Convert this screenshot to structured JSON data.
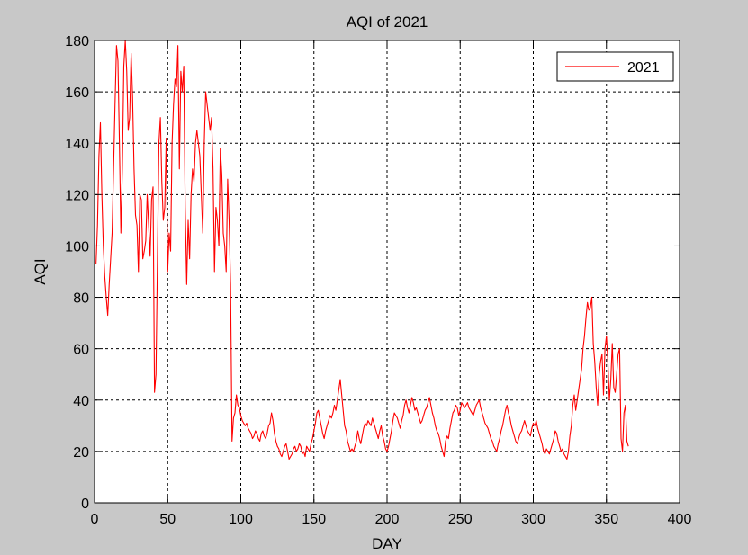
{
  "chart_data": {
    "type": "line",
    "title": "AQI of 2021",
    "xlabel": "DAY",
    "ylabel": "AQI",
    "xlim": [
      0,
      400
    ],
    "ylim": [
      0,
      180
    ],
    "xticks": [
      0,
      50,
      100,
      150,
      200,
      250,
      300,
      350,
      400
    ],
    "yticks": [
      0,
      20,
      40,
      60,
      80,
      100,
      120,
      140,
      160,
      180
    ],
    "grid": true,
    "legend_position": "top-right",
    "series": [
      {
        "name": "2021",
        "color": "#ff0000",
        "x": [
          1,
          2,
          3,
          4,
          5,
          6,
          7,
          8,
          9,
          10,
          11,
          12,
          13,
          14,
          15,
          16,
          17,
          18,
          19,
          20,
          21,
          22,
          23,
          24,
          25,
          26,
          27,
          28,
          29,
          30,
          31,
          32,
          33,
          34,
          35,
          36,
          37,
          38,
          39,
          40,
          41,
          42,
          43,
          44,
          45,
          46,
          47,
          48,
          49,
          50,
          51,
          52,
          53,
          54,
          55,
          56,
          57,
          58,
          59,
          60,
          61,
          62,
          63,
          64,
          65,
          66,
          67,
          68,
          69,
          70,
          71,
          72,
          73,
          74,
          75,
          76,
          77,
          78,
          79,
          80,
          81,
          82,
          83,
          84,
          85,
          86,
          87,
          88,
          89,
          90,
          91,
          92,
          93,
          94,
          95,
          96,
          97,
          98,
          99,
          100,
          101,
          102,
          103,
          104,
          105,
          106,
          107,
          108,
          109,
          110,
          111,
          112,
          113,
          114,
          115,
          116,
          117,
          118,
          119,
          120,
          121,
          122,
          123,
          124,
          125,
          126,
          127,
          128,
          129,
          130,
          131,
          132,
          133,
          134,
          135,
          136,
          137,
          138,
          139,
          140,
          141,
          142,
          143,
          144,
          145,
          146,
          147,
          148,
          149,
          150,
          151,
          152,
          153,
          154,
          155,
          156,
          157,
          158,
          159,
          160,
          161,
          162,
          163,
          164,
          165,
          166,
          167,
          168,
          169,
          170,
          171,
          172,
          173,
          174,
          175,
          176,
          177,
          178,
          179,
          180,
          181,
          182,
          183,
          184,
          185,
          186,
          187,
          188,
          189,
          190,
          191,
          192,
          193,
          194,
          195,
          196,
          197,
          198,
          199,
          200,
          201,
          202,
          203,
          204,
          205,
          206,
          207,
          208,
          209,
          210,
          211,
          212,
          213,
          214,
          215,
          216,
          217,
          218,
          219,
          220,
          221,
          222,
          223,
          224,
          225,
          226,
          227,
          228,
          229,
          230,
          231,
          232,
          233,
          234,
          235,
          236,
          237,
          238,
          239,
          240,
          241,
          242,
          243,
          244,
          245,
          246,
          247,
          248,
          249,
          250,
          251,
          252,
          253,
          254,
          255,
          256,
          257,
          258,
          259,
          260,
          261,
          262,
          263,
          264,
          265,
          266,
          267,
          268,
          269,
          270,
          271,
          272,
          273,
          274,
          275,
          276,
          277,
          278,
          279,
          280,
          281,
          282,
          283,
          284,
          285,
          286,
          287,
          288,
          289,
          290,
          291,
          292,
          293,
          294,
          295,
          296,
          297,
          298,
          299,
          300,
          301,
          302,
          303,
          304,
          305,
          306,
          307,
          308,
          309,
          310,
          311,
          312,
          313,
          314,
          315,
          316,
          317,
          318,
          319,
          320,
          321,
          322,
          323,
          324,
          325,
          326,
          327,
          328,
          329,
          330,
          331,
          332,
          333,
          334,
          335,
          336,
          337,
          338,
          339,
          340,
          341,
          342,
          343,
          344,
          345,
          346,
          347,
          348,
          349,
          350,
          351,
          352,
          353,
          354,
          355,
          356,
          357,
          358,
          359,
          360,
          361,
          362,
          363,
          364,
          365
        ],
        "y": [
          93,
          108,
          135,
          148,
          120,
          100,
          88,
          80,
          73,
          85,
          95,
          105,
          130,
          155,
          178,
          172,
          140,
          105,
          130,
          170,
          180,
          168,
          145,
          150,
          175,
          158,
          130,
          112,
          108,
          90,
          120,
          118,
          95,
          98,
          102,
          120,
          108,
          96,
          118,
          123,
          43,
          50,
          95,
          140,
          150,
          125,
          110,
          115,
          142,
          90,
          105,
          98,
          140,
          155,
          165,
          162,
          178,
          130,
          168,
          160,
          170,
          115,
          85,
          110,
          95,
          120,
          130,
          125,
          140,
          145,
          140,
          135,
          120,
          105,
          140,
          160,
          155,
          150,
          145,
          150,
          130,
          90,
          115,
          110,
          100,
          138,
          128,
          105,
          100,
          90,
          126,
          110,
          85,
          24,
          33,
          35,
          42,
          38,
          37,
          34,
          32,
          31,
          30,
          31,
          29,
          28,
          27,
          25,
          26,
          28,
          27,
          25,
          24,
          27,
          28,
          26,
          25,
          27,
          30,
          31,
          35,
          32,
          27,
          24,
          22,
          21,
          19,
          18,
          20,
          22,
          23,
          20,
          17,
          18,
          19,
          21,
          22,
          20,
          21,
          23,
          22,
          19,
          20,
          18,
          22,
          21,
          20,
          23,
          25,
          28,
          31,
          35,
          36,
          33,
          30,
          27,
          25,
          28,
          30,
          32,
          34,
          33,
          35,
          38,
          36,
          40,
          44,
          48,
          42,
          36,
          30,
          28,
          24,
          22,
          20,
          21,
          20,
          22,
          24,
          28,
          25,
          23,
          26,
          29,
          31,
          30,
          32,
          31,
          30,
          33,
          31,
          29,
          27,
          25,
          28,
          30,
          26,
          24,
          21,
          20,
          22,
          25,
          28,
          32,
          35,
          34,
          33,
          31,
          29,
          32,
          34,
          38,
          40,
          37,
          35,
          38,
          41,
          39,
          36,
          37,
          35,
          33,
          31,
          32,
          34,
          36,
          37,
          39,
          41,
          38,
          35,
          33,
          30,
          28,
          27,
          25,
          22,
          20,
          18,
          24,
          26,
          25,
          29,
          32,
          35,
          36,
          38,
          37,
          34,
          36,
          39,
          38,
          37,
          38,
          39,
          37,
          36,
          35,
          34,
          36,
          38,
          39,
          40,
          37,
          35,
          33,
          31,
          30,
          29,
          27,
          25,
          24,
          22,
          21,
          20,
          23,
          25,
          28,
          30,
          33,
          36,
          38,
          35,
          33,
          30,
          28,
          26,
          24,
          23,
          25,
          27,
          28,
          30,
          32,
          30,
          28,
          27,
          26,
          29,
          31,
          30,
          32,
          29,
          27,
          25,
          23,
          20,
          19,
          21,
          20,
          19,
          21,
          23,
          25,
          28,
          27,
          24,
          22,
          20,
          21,
          19,
          18,
          17,
          20,
          26,
          30,
          38,
          42,
          36,
          40,
          44,
          48,
          52,
          60,
          65,
          72,
          78,
          75,
          76,
          80,
          62,
          55,
          45,
          38,
          50,
          55,
          58,
          42,
          60,
          65,
          55,
          40,
          48,
          62,
          45,
          43,
          50,
          58,
          60,
          25,
          20,
          35,
          38,
          24,
          22
        ]
      }
    ]
  }
}
